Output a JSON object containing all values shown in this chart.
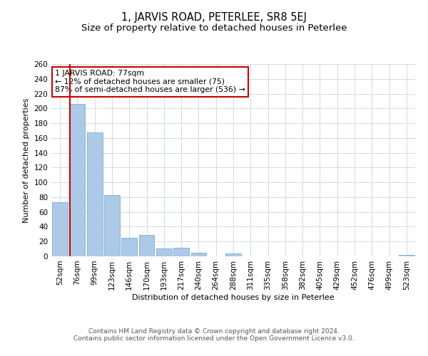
{
  "title": "1, JARVIS ROAD, PETERLEE, SR8 5EJ",
  "subtitle": "Size of property relative to detached houses in Peterlee",
  "xlabel": "Distribution of detached houses by size in Peterlee",
  "ylabel": "Number of detached properties",
  "footer_line1": "Contains HM Land Registry data © Crown copyright and database right 2024.",
  "footer_line2": "Contains public sector information licensed under the Open Government Licence v3.0.",
  "annotation_line1": "1 JARVIS ROAD: 77sqm",
  "annotation_line2": "← 12% of detached houses are smaller (75)",
  "annotation_line3": "87% of semi-detached houses are larger (536) →",
  "bar_labels": [
    "52sqm",
    "76sqm",
    "99sqm",
    "123sqm",
    "146sqm",
    "170sqm",
    "193sqm",
    "217sqm",
    "240sqm",
    "264sqm",
    "288sqm",
    "311sqm",
    "335sqm",
    "358sqm",
    "382sqm",
    "405sqm",
    "429sqm",
    "452sqm",
    "476sqm",
    "499sqm",
    "523sqm"
  ],
  "bar_values": [
    73,
    206,
    168,
    83,
    25,
    29,
    11,
    12,
    5,
    0,
    4,
    0,
    0,
    0,
    0,
    0,
    0,
    0,
    0,
    0,
    2
  ],
  "bar_color": "#adc9e8",
  "bar_edge_color": "#7aaeca",
  "marker_color": "#cc0000",
  "ylim": [
    0,
    260
  ],
  "yticks": [
    0,
    20,
    40,
    60,
    80,
    100,
    120,
    140,
    160,
    180,
    200,
    220,
    240,
    260
  ],
  "bg_color": "#ffffff",
  "grid_color": "#d0d8e8",
  "annotation_box_color": "#cc0000",
  "title_fontsize": 10.5,
  "subtitle_fontsize": 9.5,
  "label_fontsize": 8,
  "tick_fontsize": 7.5,
  "footer_fontsize": 6.5,
  "annotation_fontsize": 7.8
}
